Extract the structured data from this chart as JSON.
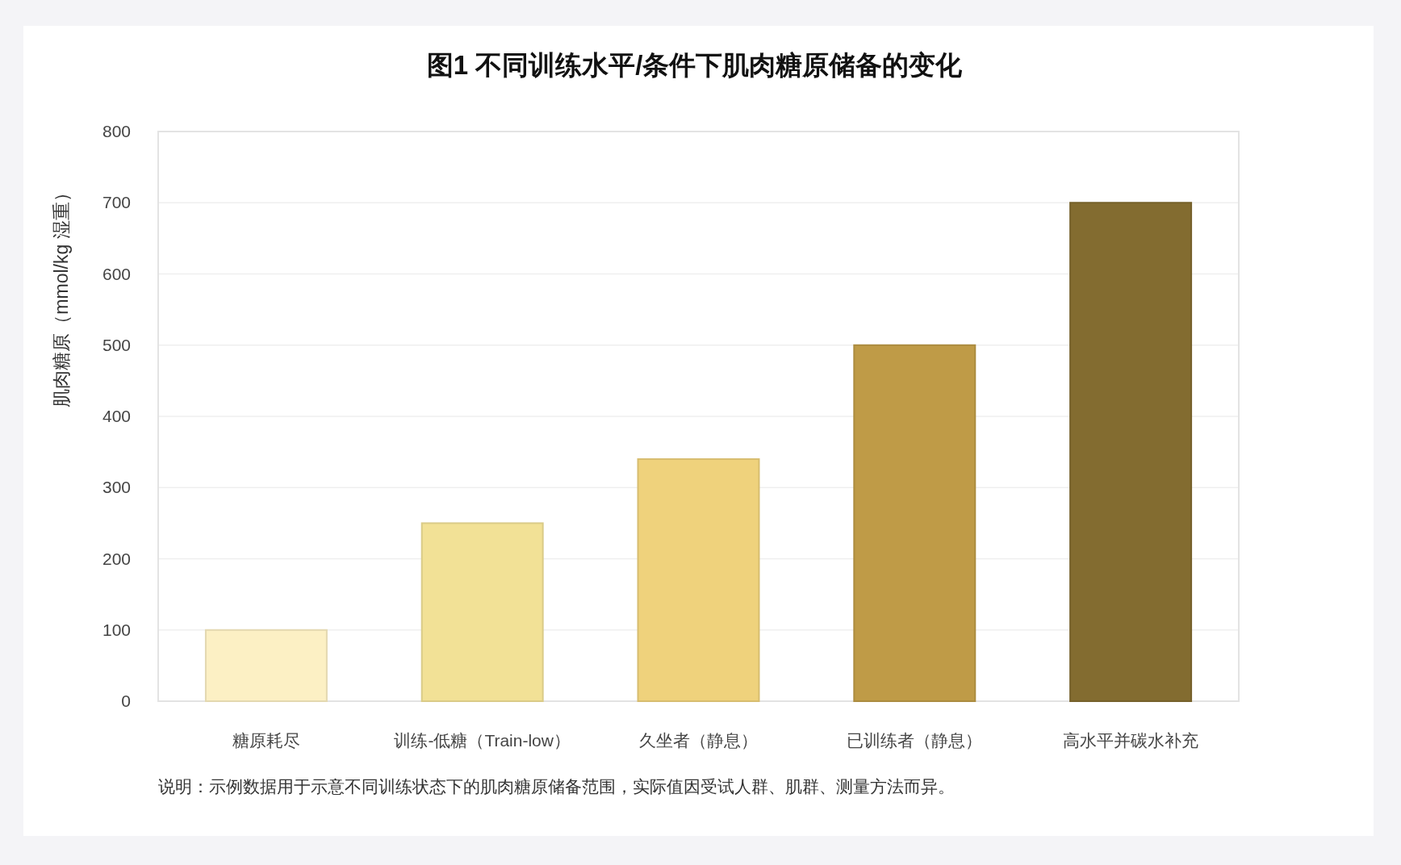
{
  "chart_data": {
    "type": "bar",
    "title": "图1 不同训练水平/条件下肌肉糖原储备的变化",
    "ylabel": "肌肉糖原（mmol/kg 湿重）",
    "categories": [
      "糖原耗尽",
      "训练-低糖（Train-low）",
      "久坐者（静息）",
      "已训练者（静息）",
      "高水平并碳水补充"
    ],
    "values": [
      100,
      250,
      340,
      500,
      700
    ],
    "colors": [
      "#fcf0c4",
      "#f2e196",
      "#efd27c",
      "#bf9b47",
      "#836c30"
    ],
    "ylim": [
      0,
      800
    ],
    "yticks": [
      0,
      100,
      200,
      300,
      400,
      500,
      600,
      700,
      800
    ],
    "grid": "y",
    "annotations": [
      "说明：示例数据用于示意不同训练状态下的肌肉糖原储备范围，实际值因受试人群、肌群、测量方法而异。"
    ]
  }
}
